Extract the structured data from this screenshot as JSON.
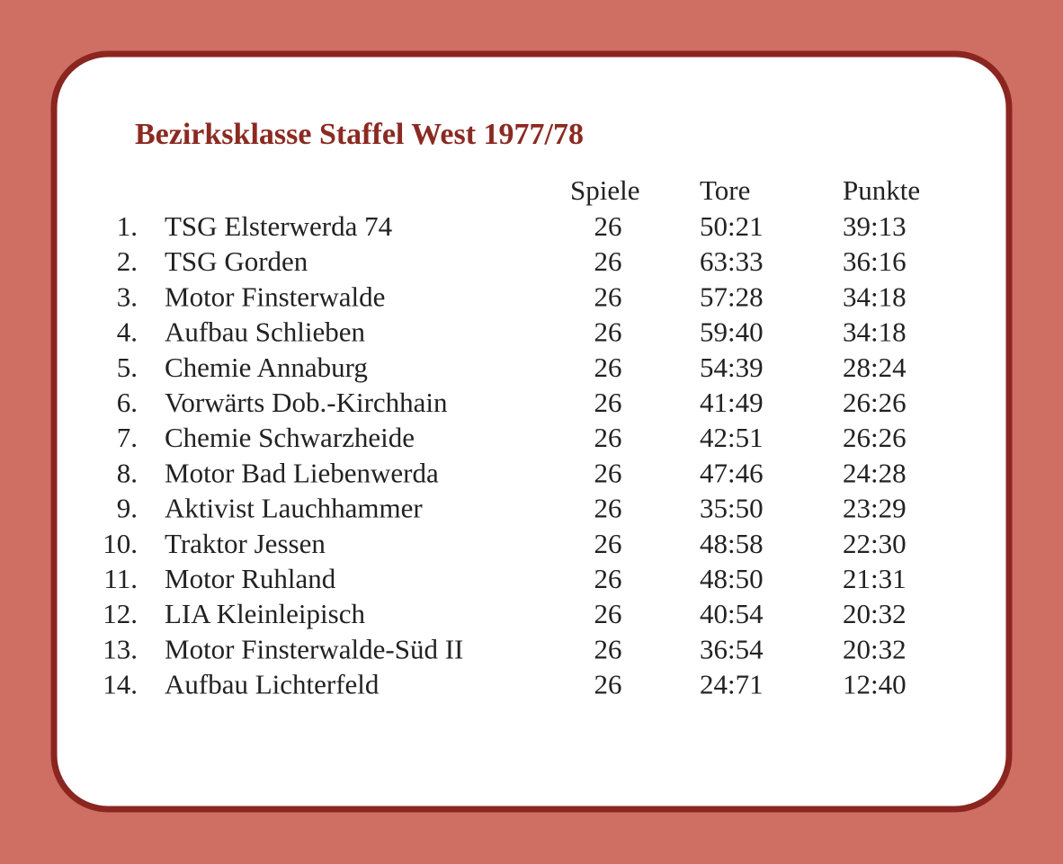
{
  "title": "Bezirksklasse Staffel West 1977/78",
  "table": {
    "header": [
      "Spiele",
      "Tore",
      "Punkte"
    ],
    "rows": [
      [
        "1.",
        "TSG Elsterwerda 74",
        26,
        "50:21",
        "39:13"
      ],
      [
        "2.",
        "TSG Gorden",
        26,
        "63:33",
        "36:16"
      ],
      [
        "3.",
        "Motor Finsterwalde",
        26,
        "57:28",
        "34:18"
      ],
      [
        "4.",
        "Aufbau Schlieben",
        26,
        "59:40",
        "34:18"
      ],
      [
        "5.",
        "Chemie Annaburg",
        26,
        "54:39",
        "28:24"
      ],
      [
        "6.",
        "Vorwärts Dob.-Kirchhain",
        26,
        "41:49",
        "26:26"
      ],
      [
        "7.",
        "Chemie Schwarzheide",
        26,
        "42:51",
        "26:26"
      ],
      [
        "8.",
        "Motor Bad Liebenwerda",
        26,
        "47:46",
        "24:28"
      ],
      [
        "9.",
        "Aktivist Lauchhammer",
        26,
        "35:50",
        "23:29"
      ],
      [
        "10.",
        "Traktor Jessen",
        26,
        "48:58",
        "22:30"
      ],
      [
        "11.",
        "Motor Ruhland",
        26,
        "48:50",
        "21:31"
      ],
      [
        "12.",
        "LIA Kleinleipisch",
        26,
        "40:54",
        "20:32"
      ],
      [
        "13.",
        "Motor Finsterwalde-Süd II",
        26,
        "36:54",
        "20:32"
      ],
      [
        "14.",
        "Aufbau Lichterfeld",
        26,
        "24:71",
        "12:40"
      ]
    ]
  }
}
